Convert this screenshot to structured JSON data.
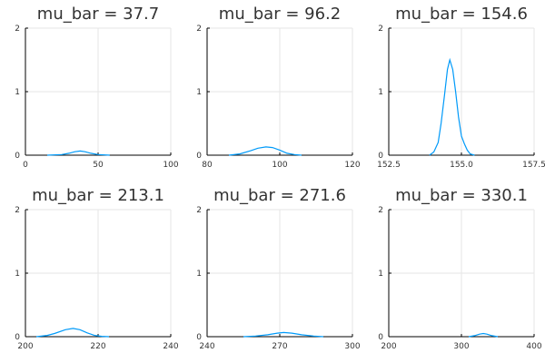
{
  "chart_data": [
    {
      "type": "line",
      "title": "mu_bar = 37.7",
      "xlim": [
        0,
        100
      ],
      "ylim": [
        0,
        2
      ],
      "xticks": [
        0,
        50,
        100
      ],
      "xtick_labels": [
        "0",
        "50",
        "100"
      ],
      "yticks": [
        0,
        1,
        2
      ],
      "ytick_labels": [
        "0",
        "1",
        "2"
      ],
      "grid": true,
      "series": [
        {
          "x": [
            15,
            25,
            30,
            34,
            37.7,
            41,
            45,
            50,
            58
          ],
          "y": [
            0,
            0.01,
            0.03,
            0.055,
            0.065,
            0.055,
            0.03,
            0.01,
            0
          ]
        }
      ]
    },
    {
      "type": "line",
      "title": "mu_bar = 96.2",
      "xlim": [
        80,
        120
      ],
      "ylim": [
        0,
        2
      ],
      "xticks": [
        80,
        100,
        120
      ],
      "xtick_labels": [
        "80",
        "100",
        "120"
      ],
      "yticks": [
        0,
        1,
        2
      ],
      "ytick_labels": [
        "0",
        "1",
        "2"
      ],
      "grid": true,
      "series": [
        {
          "x": [
            86,
            89,
            92,
            94,
            96.2,
            98,
            100,
            102,
            104,
            106
          ],
          "y": [
            0,
            0.02,
            0.07,
            0.11,
            0.13,
            0.12,
            0.08,
            0.03,
            0.01,
            0
          ]
        }
      ]
    },
    {
      "type": "line",
      "title": "mu_bar = 154.6",
      "xlim": [
        152.5,
        157.5
      ],
      "ylim": [
        0,
        2
      ],
      "xticks": [
        152.5,
        155,
        157.5
      ],
      "xtick_labels": [
        "152.5",
        "155.0",
        "157.5"
      ],
      "yticks": [
        0,
        1,
        2
      ],
      "ytick_labels": [
        "0",
        "1",
        "2"
      ],
      "grid": true,
      "series": [
        {
          "x": [
            153.9,
            154.05,
            154.2,
            154.3,
            154.42,
            154.52,
            154.6,
            154.7,
            154.8,
            154.9,
            155.0,
            155.1,
            155.2,
            155.3,
            155.45
          ],
          "y": [
            0,
            0.05,
            0.2,
            0.5,
            0.95,
            1.35,
            1.5,
            1.35,
            1.0,
            0.6,
            0.3,
            0.18,
            0.08,
            0.02,
            0
          ]
        }
      ]
    },
    {
      "type": "line",
      "title": "mu_bar = 213.1",
      "xlim": [
        200,
        240
      ],
      "ylim": [
        0,
        2
      ],
      "xticks": [
        200,
        220,
        240
      ],
      "xtick_labels": [
        "200",
        "220",
        "240"
      ],
      "yticks": [
        0,
        1,
        2
      ],
      "ytick_labels": [
        "0",
        "1",
        "2"
      ],
      "grid": true,
      "series": [
        {
          "x": [
            203,
            206,
            208,
            211,
            213.1,
            215,
            217,
            219,
            221,
            223
          ],
          "y": [
            0,
            0.02,
            0.05,
            0.11,
            0.13,
            0.11,
            0.06,
            0.02,
            0.005,
            0
          ]
        }
      ]
    },
    {
      "type": "line",
      "title": "mu_bar = 271.6",
      "xlim": [
        240,
        300
      ],
      "ylim": [
        0,
        2
      ],
      "xticks": [
        240,
        270,
        300
      ],
      "xtick_labels": [
        "240",
        "270",
        "300"
      ],
      "yticks": [
        0,
        1,
        2
      ],
      "ytick_labels": [
        "0",
        "1",
        "2"
      ],
      "grid": true,
      "series": [
        {
          "x": [
            255,
            260,
            265,
            269,
            271.6,
            275,
            279,
            284,
            288
          ],
          "y": [
            0,
            0.01,
            0.03,
            0.055,
            0.065,
            0.055,
            0.03,
            0.01,
            0
          ]
        }
      ]
    },
    {
      "type": "line",
      "title": "mu_bar = 330.1",
      "xlim": [
        200,
        400
      ],
      "ylim": [
        0,
        2
      ],
      "xticks": [
        200,
        300,
        400
      ],
      "xtick_labels": [
        "200",
        "300",
        "400"
      ],
      "yticks": [
        0,
        1,
        2
      ],
      "ytick_labels": [
        "0",
        "1",
        "2"
      ],
      "grid": true,
      "series": [
        {
          "x": [
            310,
            318,
            325,
            330.1,
            335,
            342,
            350
          ],
          "y": [
            0,
            0.015,
            0.04,
            0.05,
            0.04,
            0.015,
            0
          ]
        }
      ]
    }
  ],
  "colors": {
    "line": "#009af9",
    "grid": "#e6e6e6",
    "axis": "#000000",
    "text": "#333333"
  }
}
